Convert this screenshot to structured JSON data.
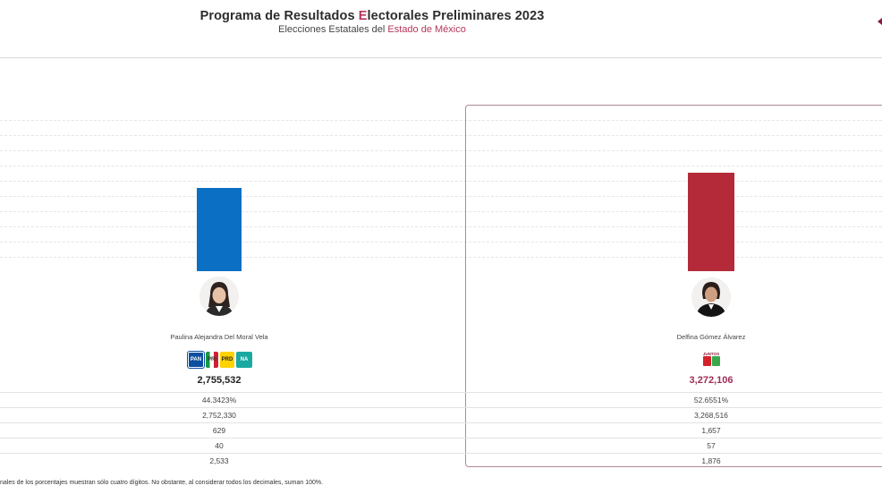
{
  "header": {
    "title_pre": "Programa de Resultados ",
    "title_accent": "E",
    "title_post": "lectorales Preliminares 2023",
    "subtitle_pre": "Elecciones Estatales del ",
    "subtitle_accent": "Estado de México"
  },
  "candidates": [
    {
      "name": "Paulina Alejandra Del Moral Vela",
      "bar_color": "#0b6fc4",
      "vote_share_pct": 44.3423,
      "party_logos": [
        "PAN",
        "PRI",
        "PRD",
        "NA"
      ],
      "total": "2,755,532",
      "rows": [
        "44.3423%",
        "2,752,330",
        "629",
        "40",
        "2,533"
      ]
    },
    {
      "name": "Delfina Gómez Álvarez",
      "bar_color": "#b52a38",
      "vote_share_pct": 52.6551,
      "coalition_label": "JUNTOS",
      "party_logos": [
        "PT",
        "MORENA",
        "PVEM"
      ],
      "total": "3,272,106",
      "rows": [
        "52.6551%",
        "3,268,516",
        "1,657",
        "57",
        "1,876"
      ]
    }
  ],
  "footnote": "nales de los porcentajes muestran sólo cuatro dígitos. No obstante, al considerar todos los decimales, suman 100%.",
  "colors": {
    "accent": "#b5365a",
    "winner_border": "#b08a95",
    "winner_total": "#9e2c56"
  }
}
